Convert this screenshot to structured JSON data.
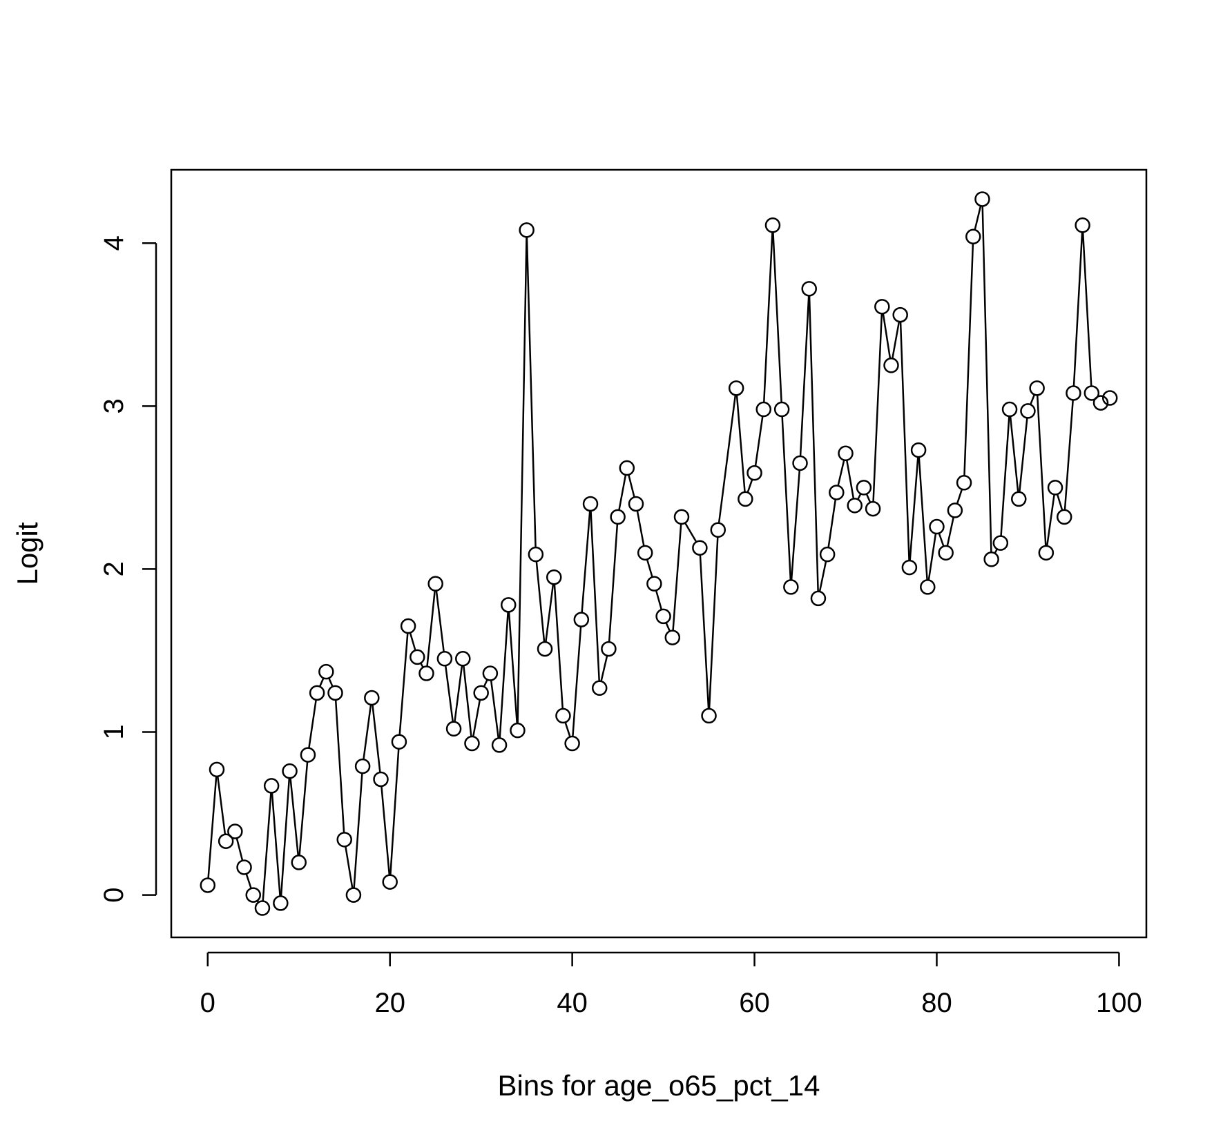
{
  "chart_data": {
    "type": "line",
    "title": "",
    "xlabel": "Bins for  age_o65_pct_14",
    "ylabel": "Logit",
    "xlim": [
      -4,
      103
    ],
    "ylim": [
      -0.26,
      4.45
    ],
    "xticks": [
      0,
      20,
      40,
      60,
      80,
      100
    ],
    "yticks": [
      0,
      1,
      2,
      3,
      4
    ],
    "grid": false,
    "legend": "none",
    "marker": "open-circle",
    "line_color": "#000000",
    "series": [
      {
        "x": [
          0,
          1,
          2,
          3,
          4,
          5,
          6,
          7,
          8,
          9,
          10,
          11,
          12,
          13,
          14,
          15,
          16,
          17,
          18,
          19,
          20,
          21,
          22,
          23,
          24,
          25,
          26,
          27,
          28,
          29,
          30,
          31,
          32,
          33,
          34,
          35,
          36,
          37,
          38,
          39,
          40,
          41,
          42,
          43,
          44,
          45,
          46,
          47,
          48,
          49,
          50,
          51,
          52,
          54,
          55,
          56,
          58,
          59,
          60,
          61,
          62,
          63,
          64,
          65,
          66,
          67,
          68,
          69,
          70,
          71,
          72,
          73,
          74,
          75,
          76,
          77,
          78,
          79,
          80,
          81,
          82,
          83,
          84,
          85,
          86,
          87,
          88,
          89,
          90,
          91,
          92,
          93,
          94,
          95,
          96,
          97,
          98,
          99
        ],
        "values": [
          0.06,
          0.77,
          0.33,
          0.39,
          0.17,
          0.0,
          -0.08,
          0.67,
          -0.05,
          0.76,
          0.2,
          0.86,
          1.24,
          1.37,
          1.24,
          0.34,
          0.0,
          0.79,
          1.21,
          0.71,
          0.08,
          0.94,
          1.65,
          1.46,
          1.36,
          1.91,
          1.45,
          1.02,
          1.45,
          0.93,
          1.24,
          1.36,
          0.92,
          1.78,
          1.01,
          4.08,
          2.09,
          1.51,
          1.95,
          1.1,
          0.93,
          1.69,
          2.4,
          1.27,
          1.51,
          2.32,
          2.62,
          2.4,
          2.1,
          1.91,
          1.71,
          1.58,
          2.32,
          2.13,
          1.1,
          2.24,
          3.11,
          2.43,
          2.59,
          2.98,
          4.11,
          2.98,
          1.89,
          2.65,
          3.72,
          1.82,
          2.09,
          2.47,
          2.71,
          2.39,
          2.5,
          2.37,
          3.61,
          3.25,
          3.56,
          2.01,
          2.73,
          1.89,
          2.26,
          2.1,
          2.36,
          2.53,
          4.04,
          4.27,
          2.06,
          2.16,
          2.98,
          2.43,
          2.97,
          3.11,
          2.1,
          2.5,
          2.32,
          3.08,
          4.11,
          3.08,
          3.02,
          3.05
        ]
      }
    ]
  }
}
